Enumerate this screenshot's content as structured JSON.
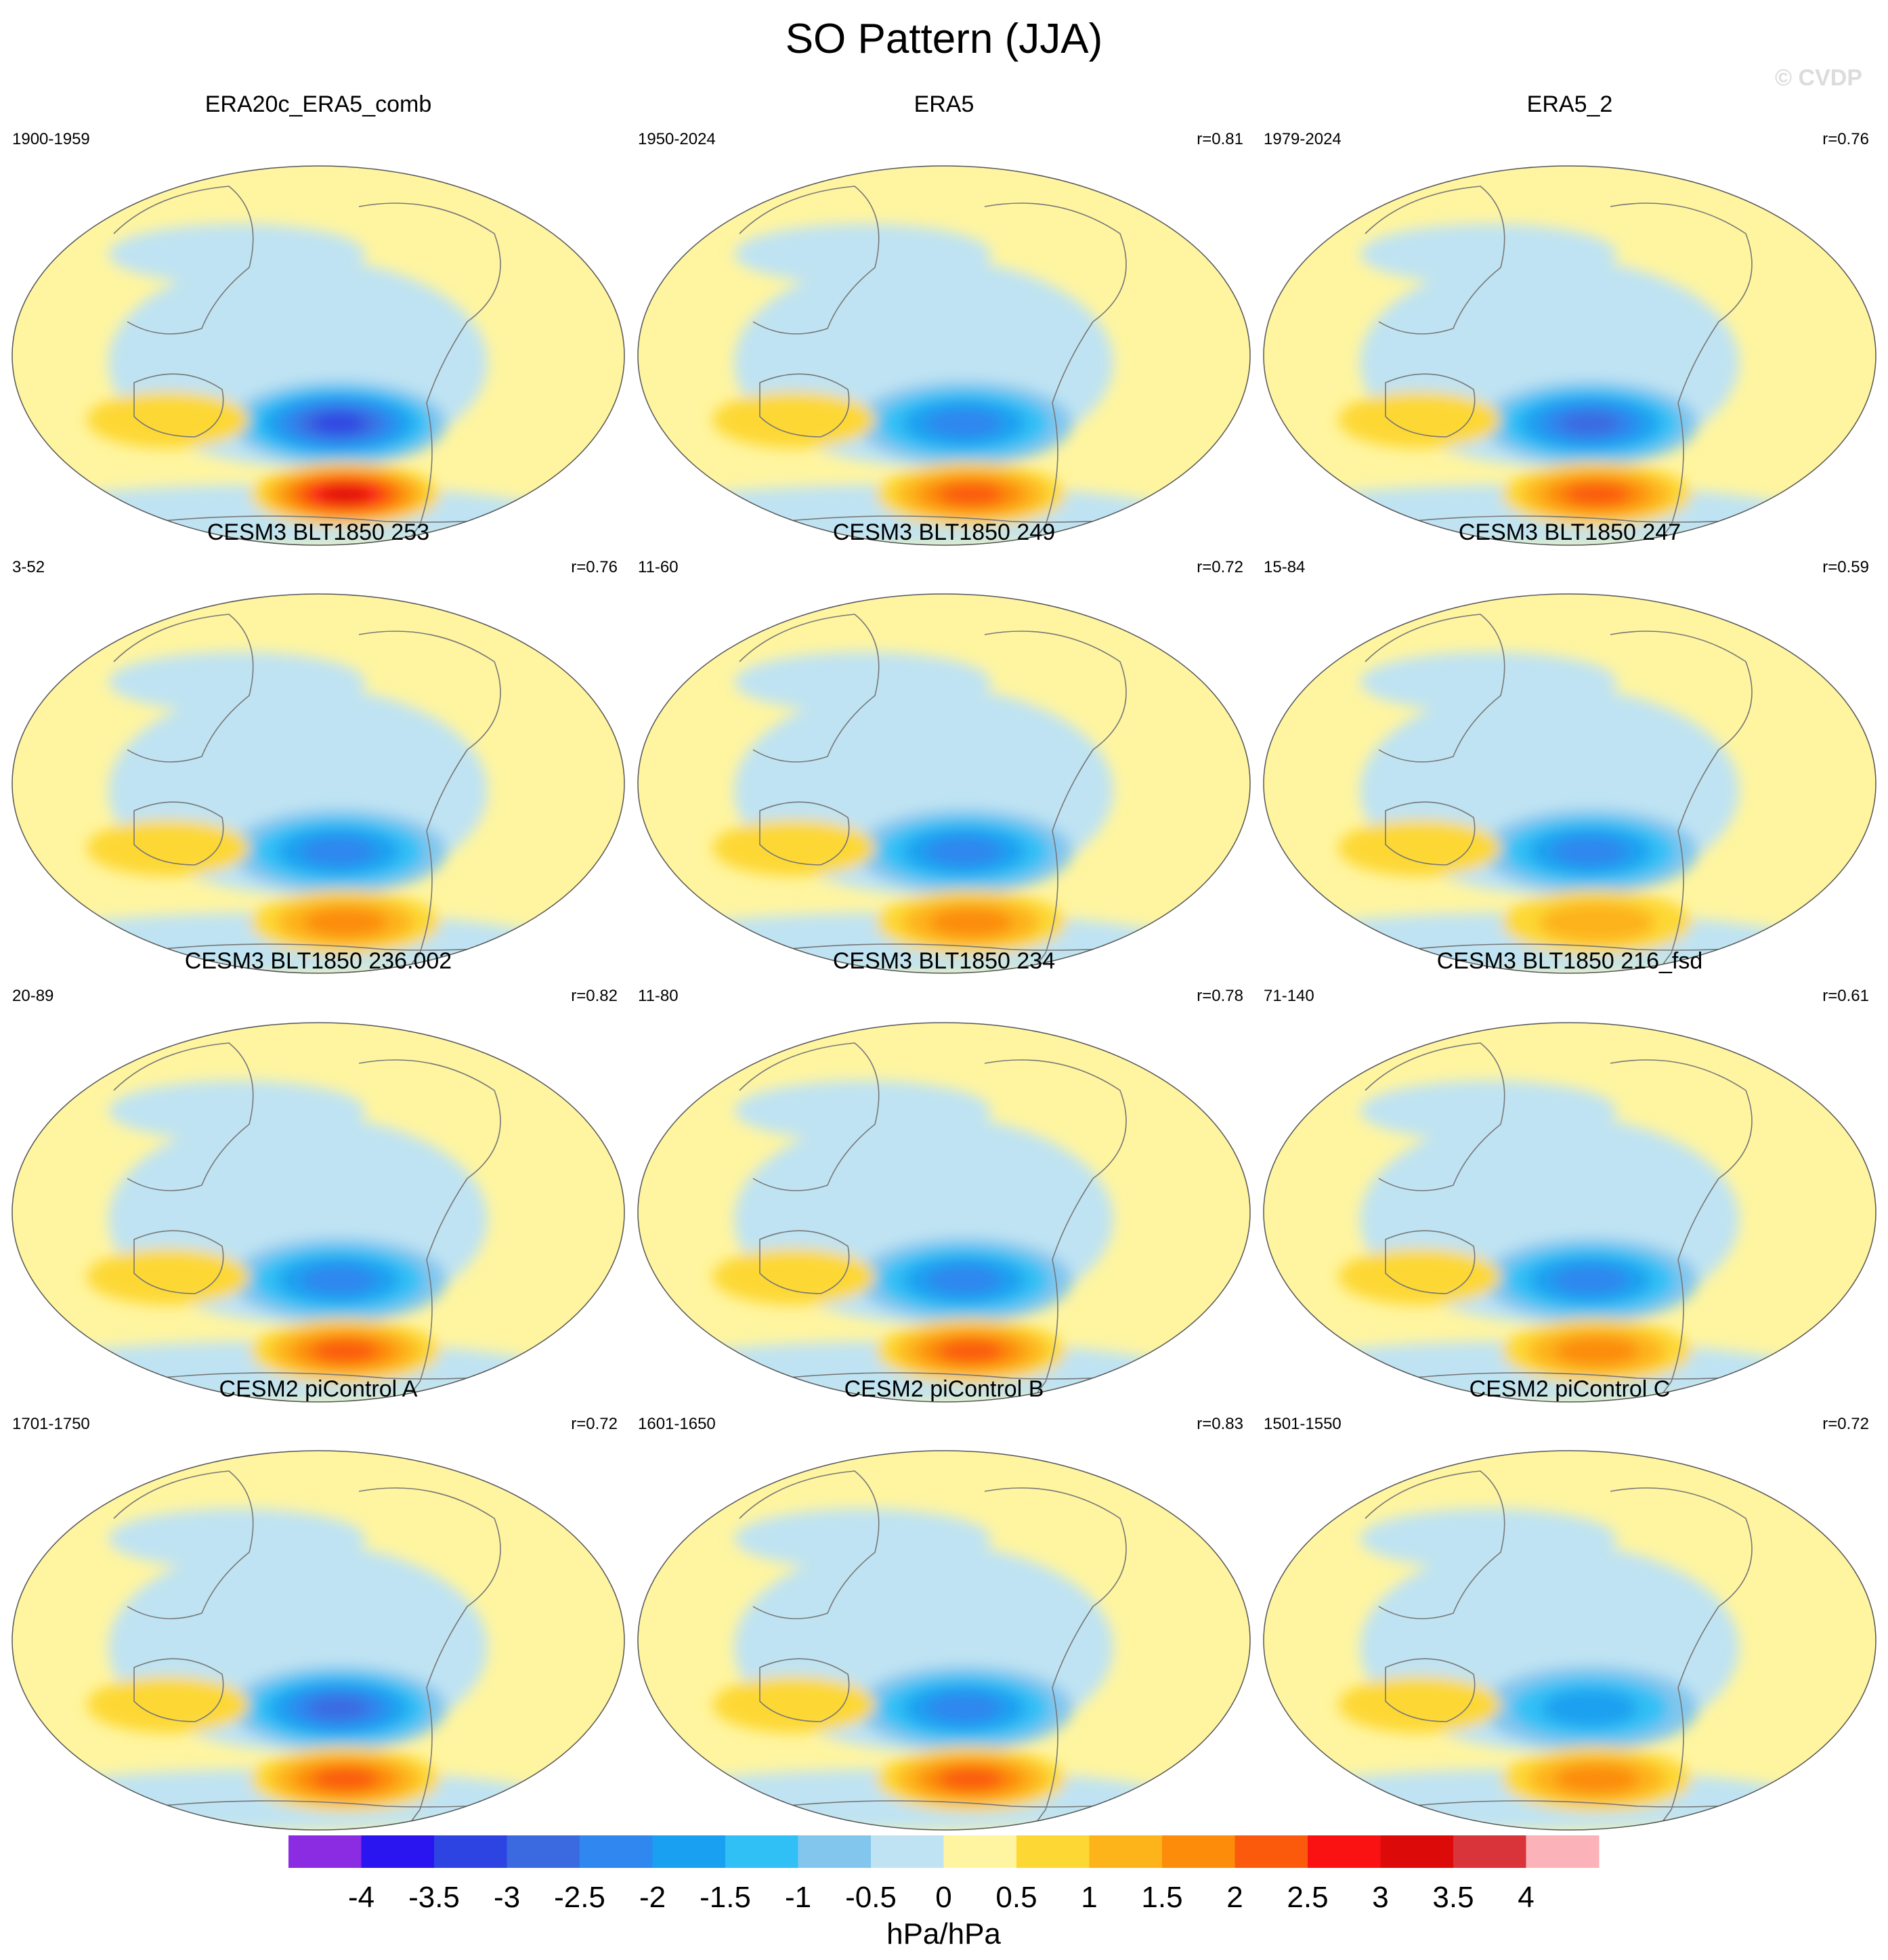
{
  "figure": {
    "title": "SO Pattern (JJA)",
    "watermark": "© CVDP"
  },
  "chart_data": {
    "type": "heatmap",
    "title": "SO Pattern (JJA)",
    "projection": "Robinson (Pacific-centered global map)",
    "panels": [
      {
        "name": "ERA20c_ERA5_comb",
        "period": "1900-1959",
        "r": "",
        "low_min": -3.4,
        "high_max": 3.2
      },
      {
        "name": "ERA5",
        "period": "1950-2024",
        "r": "r=0.81",
        "low_min": -2.2,
        "high_max": 2.0
      },
      {
        "name": "ERA5_2",
        "period": "1979-2024",
        "r": "r=0.76",
        "low_min": -2.6,
        "high_max": 2.4
      },
      {
        "name": "CESM3 BLT1850 253",
        "period": "3-52",
        "r": "r=0.76",
        "low_min": -2.1,
        "high_max": 1.6
      },
      {
        "name": "CESM3 BLT1850 249",
        "period": "11-60",
        "r": "r=0.72",
        "low_min": -2.0,
        "high_max": 1.6
      },
      {
        "name": "CESM3 BLT1850 247",
        "period": "15-84",
        "r": "r=0.59",
        "low_min": -2.1,
        "high_max": 1.1
      },
      {
        "name": "CESM3 BLT1850 236.002",
        "period": "20-89",
        "r": "r=0.82",
        "low_min": -2.0,
        "high_max": 2.0
      },
      {
        "name": "CESM3 BLT1850 234",
        "period": "11-80",
        "r": "r=0.78",
        "low_min": -2.0,
        "high_max": 2.0
      },
      {
        "name": "CESM3 BLT1850 216_fsd",
        "period": "71-140",
        "r": "r=0.61",
        "low_min": -2.1,
        "high_max": 1.6
      },
      {
        "name": "CESM2 piControl A",
        "period": "1701-1750",
        "r": "r=0.72",
        "low_min": -2.6,
        "high_max": 2.1
      },
      {
        "name": "CESM2 piControl B",
        "period": "1601-1650",
        "r": "r=0.83",
        "low_min": -2.1,
        "high_max": 2.1
      },
      {
        "name": "CESM2 piControl C",
        "period": "1501-1550",
        "r": "r=0.72",
        "low_min": -1.8,
        "high_max": 1.6
      }
    ],
    "colorbar": {
      "label": "hPa/hPa",
      "ticks": [
        "-4",
        "-3.5",
        "-3",
        "-2.5",
        "-2",
        "-1.5",
        "-1",
        "-0.5",
        "0",
        "0.5",
        "1",
        "1.5",
        "2",
        "2.5",
        "3",
        "3.5",
        "4"
      ],
      "colors": [
        "#8b2be2",
        "#2a14f0",
        "#2d44e3",
        "#3b6ae0",
        "#2f87ef",
        "#1aa0f0",
        "#30c0f5",
        "#82c6ee",
        "#bfe3f3",
        "#fff5a0",
        "#fdd835",
        "#fdb31a",
        "#fc8c0a",
        "#fb5a0d",
        "#fa1212",
        "#dd0a0a",
        "#d9343a",
        "#fbb2b8"
      ]
    }
  }
}
